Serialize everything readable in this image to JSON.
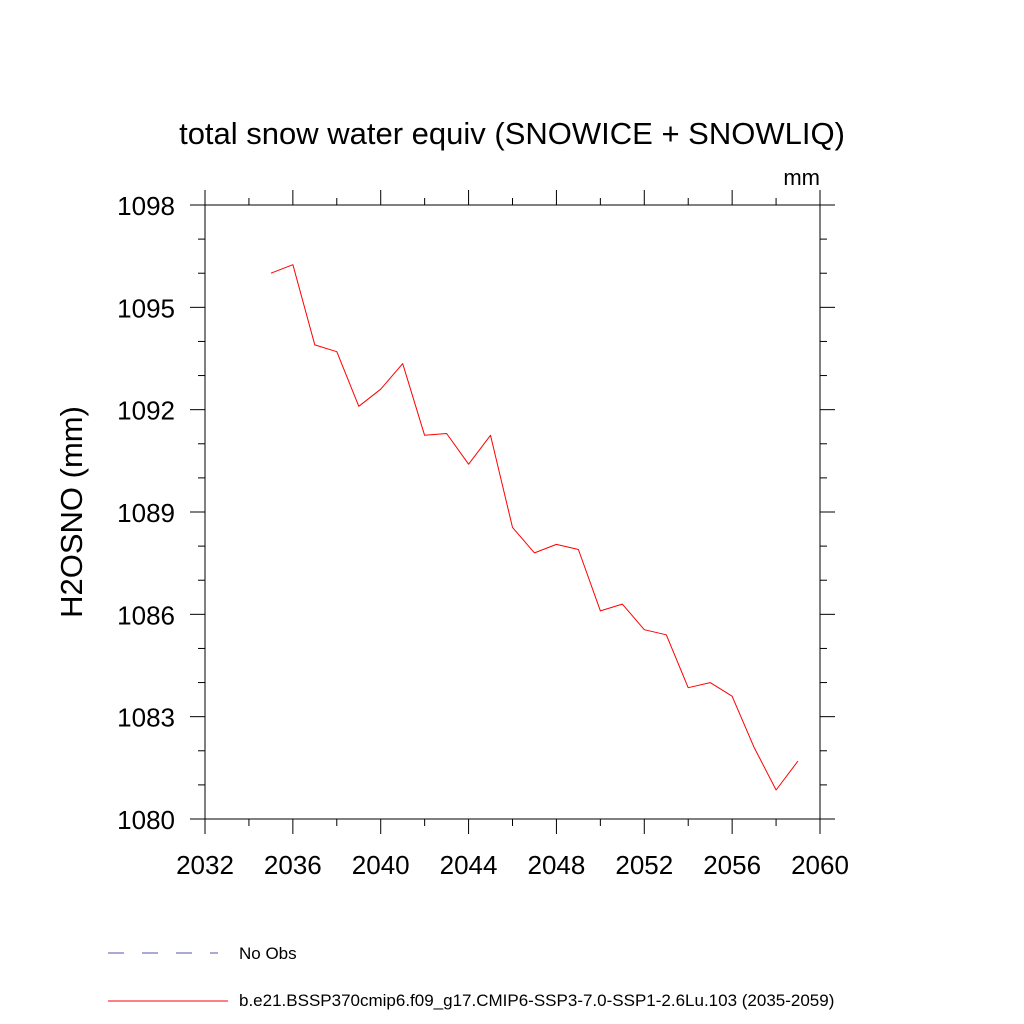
{
  "chart_data": {
    "type": "line",
    "title": "total snow water equiv (SNOWICE + SNOWLIQ)",
    "units": "mm",
    "ylabel": "H2OSNO  (mm)",
    "xlabel": "",
    "xlim": [
      2032,
      2060
    ],
    "ylim": [
      1080,
      1098
    ],
    "x_ticks": [
      2032,
      2036,
      2040,
      2044,
      2048,
      2052,
      2056,
      2060
    ],
    "x_minor_ticks": [
      2034,
      2038,
      2042,
      2046,
      2050,
      2054,
      2058
    ],
    "y_ticks": [
      1080,
      1083,
      1086,
      1089,
      1092,
      1095,
      1098
    ],
    "y_minor_ticks": [
      1081,
      1082,
      1084,
      1085,
      1087,
      1088,
      1090,
      1091,
      1093,
      1094,
      1096,
      1097
    ],
    "x_tick_labels": [
      "2032",
      "2036",
      "2040",
      "2044",
      "2048",
      "2052",
      "2056",
      "2060"
    ],
    "y_tick_labels": [
      "1080",
      "1083",
      "1086",
      "1089",
      "1092",
      "1095",
      "1098"
    ],
    "grid": false,
    "legend_position": "bottom-left, below plot",
    "series": [
      {
        "name": "b.e21.BSSP370cmip6.f09_g17.CMIP6-SSP3-7.0-SSP1-2.6Lu.103 (2035-2059)",
        "color": "#ff0000",
        "dash": "solid",
        "x": [
          2035,
          2036,
          2037,
          2038,
          2039,
          2040,
          2041,
          2042,
          2043,
          2044,
          2045,
          2046,
          2047,
          2048,
          2049,
          2050,
          2051,
          2052,
          2053,
          2054,
          2055,
          2056,
          2057,
          2058,
          2059
        ],
        "y": [
          1096.0,
          1096.25,
          1093.9,
          1093.7,
          1092.1,
          1092.6,
          1093.35,
          1091.25,
          1091.3,
          1090.4,
          1091.25,
          1088.55,
          1087.8,
          1088.05,
          1087.9,
          1086.1,
          1086.3,
          1085.55,
          1085.4,
          1083.85,
          1084.0,
          1083.6,
          1082.1,
          1080.85,
          1081.7
        ]
      }
    ],
    "legend": [
      {
        "label": "No Obs",
        "color": "#5555aa",
        "dash": "dashed"
      },
      {
        "label": "b.e21.BSSP370cmip6.f09_g17.CMIP6-SSP3-7.0-SSP1-2.6Lu.103 (2035-2059)",
        "color": "#ff0000",
        "dash": "solid"
      }
    ]
  }
}
